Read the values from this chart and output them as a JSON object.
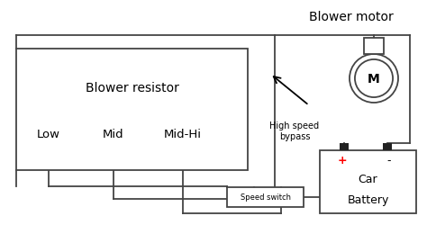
{
  "title": "Blower motor",
  "bg_color": "#ffffff",
  "line_color": "#444444",
  "resistor_label": "Blower resistor",
  "tap_labels": [
    "Low",
    "Mid",
    "Mid-Hi"
  ],
  "motor_label": "M",
  "battery_label_car": "Car",
  "battery_label_bat": "Battery",
  "plus_label": "+",
  "minus_label": "-",
  "speed_switch_label": "Speed switch",
  "bypass_label": "High speed\nbypass"
}
